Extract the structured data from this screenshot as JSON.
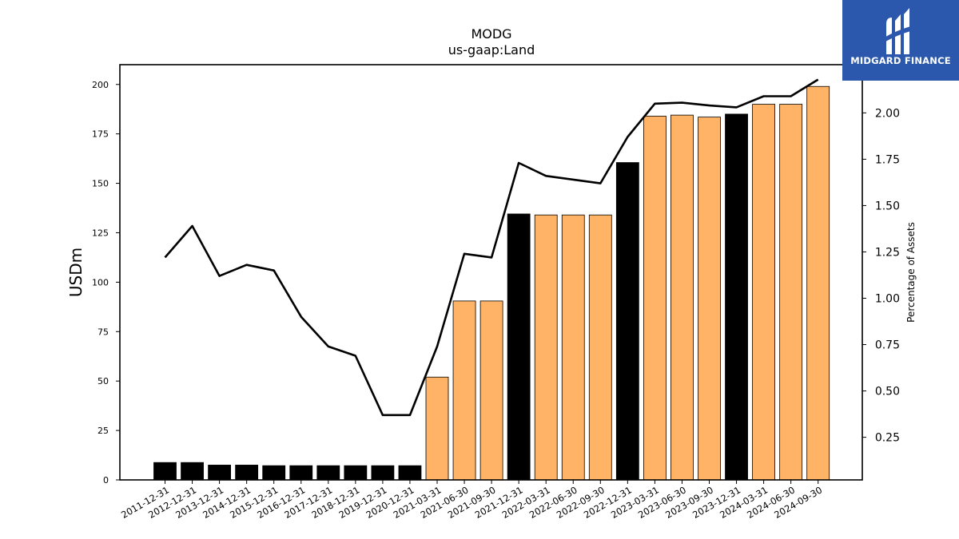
{
  "chart_data": {
    "type": "bar+line",
    "title": "MODG",
    "subtitle": "us-gaap:Land",
    "ylabel": "USDm",
    "y2label": "Percentage of Assets",
    "ylim": [
      0,
      210
    ],
    "y2lim": [
      0.02,
      2.26
    ],
    "yticks": [
      0,
      25,
      50,
      75,
      100,
      125,
      150,
      175,
      200
    ],
    "y2ticks": [
      0.25,
      0.5,
      0.75,
      1.0,
      1.25,
      1.5,
      1.75,
      2.0
    ],
    "categories": [
      "2011-12-31",
      "2012-12-31",
      "2013-12-31",
      "2014-12-31",
      "2015-12-31",
      "2016-12-31",
      "2017-12-31",
      "2018-12-31",
      "2019-12-31",
      "2020-12-31",
      "2021-03-31",
      "2021-06-30",
      "2021-09-30",
      "2021-12-31",
      "2022-03-31",
      "2022-06-30",
      "2022-09-30",
      "2022-12-31",
      "2023-03-31",
      "2023-06-30",
      "2023-09-30",
      "2023-12-31",
      "2024-03-31",
      "2024-06-30",
      "2024-09-30"
    ],
    "bars": [
      8.8,
      8.8,
      7.5,
      7.5,
      7.2,
      7.2,
      7.2,
      7.2,
      7.2,
      7.2,
      52,
      90.5,
      90.5,
      134.5,
      134,
      134,
      134,
      160.5,
      184,
      184.5,
      183.5,
      185,
      190,
      190,
      199
    ],
    "bar_kind": [
      "annual",
      "annual",
      "annual",
      "annual",
      "annual",
      "annual",
      "annual",
      "annual",
      "annual",
      "annual",
      "quarterly",
      "quarterly",
      "quarterly",
      "annual",
      "quarterly",
      "quarterly",
      "quarterly",
      "annual",
      "quarterly",
      "quarterly",
      "quarterly",
      "annual",
      "quarterly",
      "quarterly",
      "quarterly"
    ],
    "line": [
      1.22,
      1.39,
      1.12,
      1.18,
      1.15,
      0.9,
      0.74,
      0.69,
      0.37,
      0.37,
      0.74,
      1.24,
      1.22,
      1.73,
      1.66,
      1.64,
      1.62,
      1.87,
      2.05,
      2.055,
      2.04,
      2.03,
      2.09,
      2.09,
      2.18
    ],
    "colors": {
      "annual": "#000000",
      "quarterly": "#ffb366",
      "line": "#000000"
    },
    "grid": false
  },
  "logo": {
    "text": "MIDGARD FINANCE",
    "background": "#2b58ad"
  }
}
